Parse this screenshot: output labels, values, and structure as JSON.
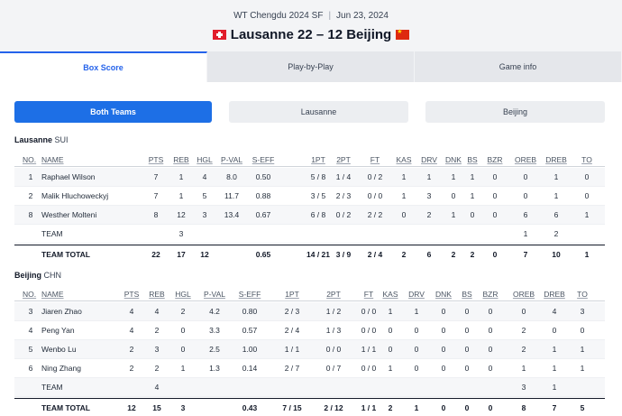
{
  "header": {
    "event": "WT Chengdu 2024 SF",
    "date": "Jun 23, 2024",
    "score_line": "Lausanne 22 – 12 Beijing",
    "home_flag": "swiss-flag-icon",
    "away_flag": "china-flag-icon"
  },
  "tabs": [
    {
      "label": "Box Score",
      "active": true
    },
    {
      "label": "Play-by-Play",
      "active": false
    },
    {
      "label": "Game info",
      "active": false
    }
  ],
  "filters": [
    {
      "label": "Both Teams",
      "active": true
    },
    {
      "label": "Lausanne",
      "active": false
    },
    {
      "label": "Beijing",
      "active": false
    }
  ],
  "colors": {
    "accent": "#1d6fe6",
    "tab_active": "#2563eb",
    "header_bg": "#f3f4f6"
  },
  "columns": [
    "NO.",
    "NAME",
    "PTS",
    "REB",
    "HGL",
    "P-VAL",
    "S-EFF",
    "1PT",
    "2PT",
    "FT",
    "KAS",
    "DRV",
    "DNK",
    "BS",
    "BZR",
    "OREB",
    "DREB",
    "TO"
  ],
  "teams": [
    {
      "name": "Lausanne",
      "code": "SUI",
      "players": [
        {
          "no": "1",
          "name": "Raphael Wilson",
          "pts": "7",
          "reb": "1",
          "hgl": "4",
          "pval": "8.0",
          "seff": "0.50",
          "p1": "5 / 8",
          "p2": "1 / 4",
          "ft": "0 / 2",
          "kas": "1",
          "drv": "1",
          "dnk": "1",
          "bs": "1",
          "bzr": "0",
          "oreb": "0",
          "dreb": "1",
          "to": "0"
        },
        {
          "no": "2",
          "name": "Malik Hluchoweckyj",
          "pts": "7",
          "reb": "1",
          "hgl": "5",
          "pval": "11.7",
          "seff": "0.88",
          "p1": "3 / 5",
          "p2": "2 / 3",
          "ft": "0 / 0",
          "kas": "1",
          "drv": "3",
          "dnk": "0",
          "bs": "1",
          "bzr": "0",
          "oreb": "0",
          "dreb": "1",
          "to": "0"
        },
        {
          "no": "8",
          "name": "Westher Molteni",
          "pts": "8",
          "reb": "12",
          "hgl": "3",
          "pval": "13.4",
          "seff": "0.67",
          "p1": "6 / 8",
          "p2": "0 / 2",
          "ft": "2 / 2",
          "kas": "0",
          "drv": "2",
          "dnk": "1",
          "bs": "0",
          "bzr": "0",
          "oreb": "6",
          "dreb": "6",
          "to": "1"
        }
      ],
      "team_row": {
        "name": "TEAM",
        "reb": "3",
        "oreb": "1",
        "dreb": "2"
      },
      "total": {
        "name": "TEAM TOTAL",
        "pts": "22",
        "reb": "17",
        "hgl": "12",
        "pval": "",
        "seff": "0.65",
        "p1": "14 / 21",
        "p2": "3 / 9",
        "ft": "2 / 4",
        "kas": "2",
        "drv": "6",
        "dnk": "2",
        "bs": "2",
        "bzr": "0",
        "oreb": "7",
        "dreb": "10",
        "to": "1"
      }
    },
    {
      "name": "Beijing",
      "code": "CHN",
      "players": [
        {
          "no": "3",
          "name": "Jiaren Zhao",
          "pts": "4",
          "reb": "4",
          "hgl": "2",
          "pval": "4.2",
          "seff": "0.80",
          "p1": "2 / 3",
          "p2": "1 / 2",
          "ft": "0 / 0",
          "kas": "1",
          "drv": "1",
          "dnk": "0",
          "bs": "0",
          "bzr": "0",
          "oreb": "0",
          "dreb": "4",
          "to": "3"
        },
        {
          "no": "4",
          "name": "Peng Yan",
          "pts": "4",
          "reb": "2",
          "hgl": "0",
          "pval": "3.3",
          "seff": "0.57",
          "p1": "2 / 4",
          "p2": "1 / 3",
          "ft": "0 / 0",
          "kas": "0",
          "drv": "0",
          "dnk": "0",
          "bs": "0",
          "bzr": "0",
          "oreb": "2",
          "dreb": "0",
          "to": "0"
        },
        {
          "no": "5",
          "name": "Wenbo Lu",
          "pts": "2",
          "reb": "3",
          "hgl": "0",
          "pval": "2.5",
          "seff": "1.00",
          "p1": "1 / 1",
          "p2": "0 / 0",
          "ft": "1 / 1",
          "kas": "0",
          "drv": "0",
          "dnk": "0",
          "bs": "0",
          "bzr": "0",
          "oreb": "2",
          "dreb": "1",
          "to": "1"
        },
        {
          "no": "6",
          "name": "Ning Zhang",
          "pts": "2",
          "reb": "2",
          "hgl": "1",
          "pval": "1.3",
          "seff": "0.14",
          "p1": "2 / 7",
          "p2": "0 / 7",
          "ft": "0 / 0",
          "kas": "1",
          "drv": "0",
          "dnk": "0",
          "bs": "0",
          "bzr": "0",
          "oreb": "1",
          "dreb": "1",
          "to": "1"
        }
      ],
      "team_row": {
        "name": "TEAM",
        "reb": "4",
        "oreb": "3",
        "dreb": "1"
      },
      "total": {
        "name": "TEAM TOTAL",
        "pts": "12",
        "reb": "15",
        "hgl": "3",
        "pval": "",
        "seff": "0.43",
        "p1": "7 / 15",
        "p2": "2 / 12",
        "ft": "1 / 1",
        "kas": "2",
        "drv": "1",
        "dnk": "0",
        "bs": "0",
        "bzr": "0",
        "oreb": "8",
        "dreb": "7",
        "to": "5"
      }
    }
  ]
}
